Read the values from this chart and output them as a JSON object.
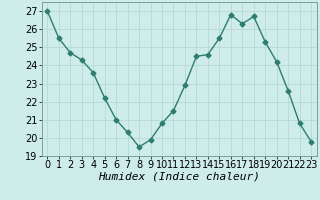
{
  "x": [
    0,
    1,
    2,
    3,
    4,
    5,
    6,
    7,
    8,
    9,
    10,
    11,
    12,
    13,
    14,
    15,
    16,
    17,
    18,
    19,
    20,
    21,
    22,
    23
  ],
  "y": [
    27,
    25.5,
    24.7,
    24.3,
    23.6,
    22.2,
    21.0,
    20.3,
    19.5,
    19.9,
    20.8,
    21.5,
    22.9,
    24.5,
    24.6,
    25.5,
    26.8,
    26.3,
    26.7,
    25.3,
    24.2,
    22.6,
    20.8,
    19.8
  ],
  "line_color": "#2e7d6e",
  "marker": "D",
  "marker_size": 2.5,
  "bg_color": "#cdecea",
  "grid_color": "#b8d8d5",
  "xlabel": "Humidex (Indice chaleur)",
  "ylim": [
    19,
    27.5
  ],
  "yticks": [
    19,
    20,
    21,
    22,
    23,
    24,
    25,
    26,
    27
  ],
  "xticks": [
    0,
    1,
    2,
    3,
    4,
    5,
    6,
    7,
    8,
    9,
    10,
    11,
    12,
    13,
    14,
    15,
    16,
    17,
    18,
    19,
    20,
    21,
    22,
    23
  ],
  "xlabel_fontsize": 8,
  "tick_fontsize": 7
}
